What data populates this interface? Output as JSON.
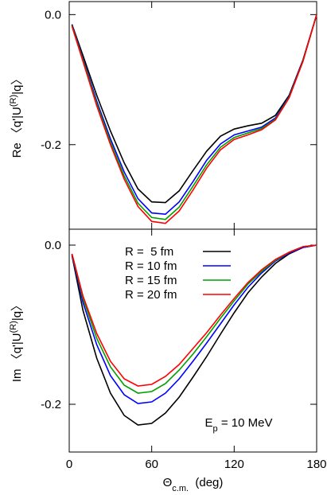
{
  "chart_data": [
    {
      "type": "line",
      "ylabel": {
        "main": "Re 〈q'|U",
        "sup": "(R)",
        "end": "|q〉"
      },
      "x": [
        2,
        10,
        20,
        30,
        40,
        50,
        60,
        70,
        80,
        90,
        100,
        110,
        120,
        130,
        140,
        150,
        160,
        170,
        180
      ],
      "xlim": [
        0,
        180
      ],
      "xticks": [
        0,
        60,
        120,
        180
      ],
      "ylim": [
        -0.33,
        0.02
      ],
      "yticks": [
        {
          "value": 0,
          "label": "0.0"
        },
        -0.2
      ],
      "series": [
        {
          "color": "#000000",
          "values": [
            -0.015,
            -0.063,
            -0.124,
            -0.179,
            -0.228,
            -0.268,
            -0.288,
            -0.289,
            -0.271,
            -0.24,
            -0.21,
            -0.187,
            -0.176,
            -0.171,
            -0.167,
            -0.155,
            -0.124,
            -0.07,
            0
          ]
        },
        {
          "color": "#0000ff",
          "values": [
            -0.016,
            -0.068,
            -0.133,
            -0.191,
            -0.242,
            -0.283,
            -0.305,
            -0.307,
            -0.288,
            -0.257,
            -0.224,
            -0.199,
            -0.185,
            -0.179,
            -0.173,
            -0.159,
            -0.126,
            -0.071,
            0
          ]
        },
        {
          "color": "#00a000",
          "values": [
            -0.017,
            -0.07,
            -0.137,
            -0.196,
            -0.248,
            -0.29,
            -0.312,
            -0.315,
            -0.296,
            -0.264,
            -0.231,
            -0.204,
            -0.189,
            -0.182,
            -0.175,
            -0.161,
            -0.127,
            -0.072,
            0
          ]
        },
        {
          "color": "#ff0000",
          "values": [
            -0.018,
            -0.072,
            -0.14,
            -0.2,
            -0.253,
            -0.295,
            -0.318,
            -0.321,
            -0.302,
            -0.27,
            -0.236,
            -0.208,
            -0.192,
            -0.185,
            -0.177,
            -0.162,
            -0.128,
            -0.072,
            0
          ]
        }
      ]
    },
    {
      "type": "line",
      "ylabel": {
        "main": "Im 〈q'|U",
        "sup": "(R)",
        "end": "|q〉"
      },
      "xlabel": {
        "main": "Θ",
        "sub": "c.m.",
        "end": "  (deg)"
      },
      "annotation": {
        "main": "E",
        "sub": "p",
        "end": " = 10 MeV"
      },
      "x": [
        2,
        10,
        20,
        30,
        40,
        50,
        60,
        70,
        80,
        90,
        100,
        110,
        120,
        130,
        140,
        150,
        160,
        170,
        180
      ],
      "xlim": [
        0,
        180
      ],
      "xticks": [
        0,
        60,
        120,
        180
      ],
      "ylim": [
        -0.26,
        0.02
      ],
      "yticks": [
        {
          "value": 0,
          "label": "0.0"
        },
        -0.2
      ],
      "series": [
        {
          "name": "R =  5 fm",
          "color": "#000000",
          "values": [
            -0.013,
            -0.082,
            -0.142,
            -0.186,
            -0.214,
            -0.226,
            -0.224,
            -0.211,
            -0.191,
            -0.166,
            -0.14,
            -0.112,
            -0.085,
            -0.06,
            -0.04,
            -0.023,
            -0.011,
            -0.003,
            0
          ]
        },
        {
          "name": "R = 10 fm",
          "color": "#0000ff",
          "values": [
            -0.012,
            -0.072,
            -0.125,
            -0.164,
            -0.188,
            -0.199,
            -0.197,
            -0.186,
            -0.168,
            -0.146,
            -0.123,
            -0.099,
            -0.075,
            -0.053,
            -0.035,
            -0.02,
            -0.01,
            -0.003,
            0
          ]
        },
        {
          "name": "R = 15 fm",
          "color": "#00a000",
          "values": [
            -0.011,
            -0.067,
            -0.117,
            -0.153,
            -0.176,
            -0.186,
            -0.184,
            -0.174,
            -0.157,
            -0.137,
            -0.115,
            -0.092,
            -0.07,
            -0.049,
            -0.033,
            -0.019,
            -0.009,
            -0.002,
            0
          ]
        },
        {
          "name": "R = 20 fm",
          "color": "#ff0000",
          "values": [
            -0.011,
            -0.064,
            -0.111,
            -0.146,
            -0.168,
            -0.177,
            -0.175,
            -0.165,
            -0.15,
            -0.13,
            -0.11,
            -0.088,
            -0.067,
            -0.047,
            -0.031,
            -0.018,
            -0.009,
            -0.002,
            0
          ]
        }
      ]
    }
  ]
}
